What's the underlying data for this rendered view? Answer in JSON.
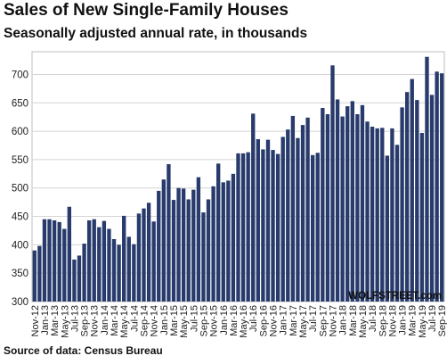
{
  "chart_data": {
    "type": "bar",
    "title": "Sales of New Single-Family  Houses",
    "subtitle": "Seasonally adjusted annual rate, in thousands",
    "source": "Source of data: Census Bureau",
    "watermark": "WOLFSTREET.com",
    "ylim": [
      300,
      740
    ],
    "yticks": [
      300,
      350,
      400,
      450,
      500,
      550,
      600,
      650,
      700
    ],
    "grid": true,
    "bar_color": "#283b6c",
    "categories": [
      "Nov-12",
      "Dec-12",
      "Jan-13",
      "Feb-13",
      "Mar-13",
      "Apr-13",
      "May-13",
      "Jun-13",
      "Jul-13",
      "Aug-13",
      "Sep-13",
      "Oct-13",
      "Nov-13",
      "Dec-13",
      "Jan-14",
      "Feb-14",
      "Mar-14",
      "Apr-14",
      "May-14",
      "Jun-14",
      "Jul-14",
      "Aug-14",
      "Sep-14",
      "Oct-14",
      "Nov-14",
      "Dec-14",
      "Jan-15",
      "Feb-15",
      "Mar-15",
      "Apr-15",
      "May-15",
      "Jun-15",
      "Jul-15",
      "Aug-15",
      "Sep-15",
      "Oct-15",
      "Nov-15",
      "Dec-15",
      "Jan-16",
      "Feb-16",
      "Mar-16",
      "Apr-16",
      "May-16",
      "Jun-16",
      "Jul-16",
      "Aug-16",
      "Sep-16",
      "Oct-16",
      "Nov-16",
      "Dec-16",
      "Jan-17",
      "Feb-17",
      "Mar-17",
      "Apr-17",
      "May-17",
      "Jun-17",
      "Jul-17",
      "Aug-17",
      "Sep-17",
      "Oct-17",
      "Nov-17",
      "Dec-17",
      "Jan-18",
      "Feb-18",
      "Mar-18",
      "Apr-18",
      "May-18",
      "Jun-18",
      "Jul-18",
      "Aug-18",
      "Sep-18",
      "Oct-18",
      "Nov-18",
      "Dec-18",
      "Jan-19",
      "Feb-19",
      "Mar-19",
      "Apr-19",
      "May-19",
      "Jun-19",
      "Jul-19",
      "Aug-19",
      "Sep-19"
    ],
    "tick_labels": [
      "Nov-12",
      "Jan-13",
      "Mar-13",
      "May-13",
      "Jul-13",
      "Sep-13",
      "Nov-13",
      "Jan-14",
      "Mar-14",
      "May-14",
      "Jul-14",
      "Sep-14",
      "Nov-14",
      "Jan-15",
      "Mar-15",
      "May-15",
      "Jul-15",
      "Sep-15",
      "Nov-15",
      "Jan-16",
      "Mar-16",
      "May-16",
      "Jul-16",
      "Sep-16",
      "Nov-16",
      "Jan-17",
      "Mar-17",
      "May-17",
      "Jul-17",
      "Sep-17",
      "Nov-17",
      "Jan-18",
      "Mar-18",
      "May-18",
      "Jul-18",
      "Sep-18",
      "Nov-18",
      "Jan-19",
      "Mar-19",
      "May-19",
      "Jul-19",
      "Sep-19"
    ],
    "values": [
      390,
      398,
      445,
      445,
      443,
      440,
      428,
      467,
      374,
      381,
      402,
      443,
      445,
      431,
      442,
      428,
      410,
      400,
      451,
      414,
      401,
      455,
      464,
      474,
      441,
      495,
      515,
      542,
      479,
      500,
      499,
      480,
      497,
      519,
      457,
      480,
      503,
      543,
      510,
      513,
      525,
      561,
      561,
      563,
      631,
      586,
      568,
      585,
      567,
      560,
      590,
      603,
      627,
      588,
      611,
      624,
      558,
      562,
      641,
      630,
      716,
      656,
      626,
      644,
      653,
      630,
      646,
      617,
      608,
      605,
      606,
      557,
      605,
      576,
      642,
      669,
      692,
      655,
      597,
      731,
      664,
      705,
      702
    ]
  }
}
